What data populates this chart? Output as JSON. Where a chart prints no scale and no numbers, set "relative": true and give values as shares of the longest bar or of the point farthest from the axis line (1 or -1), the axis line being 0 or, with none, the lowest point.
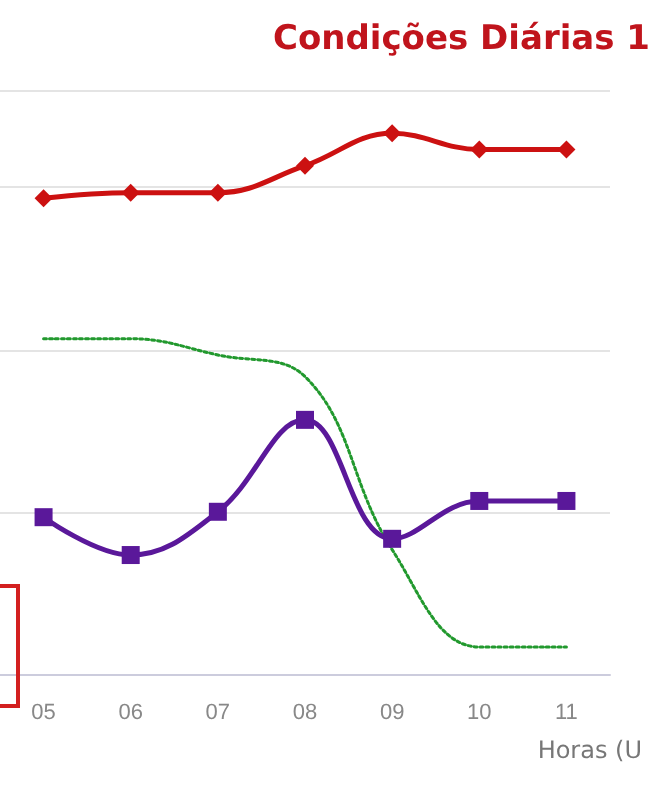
{
  "chart_data": {
    "type": "line",
    "title": "Condições Diárias 1",
    "xlabel": "Horas (U",
    "categories": [
      "05",
      "06",
      "07",
      "08",
      "09",
      "10",
      "11"
    ],
    "relative": true,
    "grid": "y",
    "series": [
      {
        "color": "#cc1111",
        "marker": "diamond",
        "line_style": "solid",
        "values": [
          0.88,
          0.89,
          0.89,
          0.94,
          1,
          0.97,
          0.97
        ]
      },
      {
        "color": "#22992e",
        "marker": "none",
        "line_style": "dotted",
        "values": [
          0.62,
          0.62,
          0.59,
          0.55,
          0.23,
          0.05,
          0.05
        ]
      },
      {
        "color": "#5a189a",
        "marker": "square",
        "line_style": "solid",
        "values": [
          0.29,
          0.22,
          0.3,
          0.47,
          0.25,
          0.32,
          0.32
        ]
      }
    ]
  }
}
